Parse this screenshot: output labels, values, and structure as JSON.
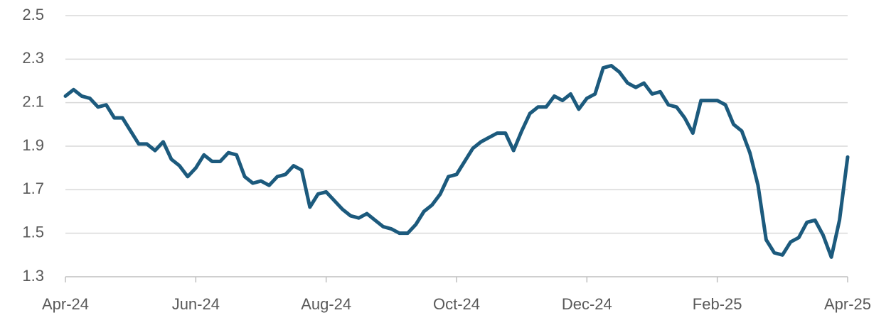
{
  "chart_data": {
    "type": "line",
    "categories": [
      "Apr-24",
      null,
      null,
      null,
      null,
      null,
      null,
      null,
      null,
      null,
      null,
      null,
      null,
      null,
      null,
      null,
      "Jun-24",
      null,
      null,
      null,
      null,
      null,
      null,
      null,
      null,
      null,
      null,
      null,
      null,
      null,
      null,
      null,
      "Aug-24",
      null,
      null,
      null,
      null,
      null,
      null,
      null,
      null,
      null,
      null,
      null,
      null,
      null,
      null,
      null,
      "Oct-24",
      null,
      null,
      null,
      null,
      null,
      null,
      null,
      null,
      null,
      null,
      null,
      null,
      null,
      null,
      null,
      "Dec-24",
      null,
      null,
      null,
      null,
      null,
      null,
      null,
      null,
      null,
      null,
      null,
      null,
      null,
      null,
      null,
      "Feb-25",
      null,
      null,
      null,
      null,
      null,
      null,
      null,
      null,
      null,
      null,
      null,
      null,
      null,
      null,
      null,
      "Apr-25"
    ],
    "values": [
      2.13,
      2.16,
      2.13,
      2.12,
      2.08,
      2.09,
      2.03,
      2.03,
      1.97,
      1.91,
      1.91,
      1.88,
      1.92,
      1.84,
      1.81,
      1.76,
      1.8,
      1.86,
      1.83,
      1.83,
      1.87,
      1.86,
      1.76,
      1.73,
      1.74,
      1.72,
      1.76,
      1.77,
      1.81,
      1.79,
      1.62,
      1.68,
      1.69,
      1.65,
      1.61,
      1.58,
      1.57,
      1.59,
      1.56,
      1.53,
      1.52,
      1.5,
      1.5,
      1.54,
      1.6,
      1.63,
      1.68,
      1.76,
      1.77,
      1.83,
      1.89,
      1.92,
      1.94,
      1.96,
      1.96,
      1.88,
      1.97,
      2.05,
      2.08,
      2.08,
      2.13,
      2.11,
      2.14,
      2.07,
      2.12,
      2.14,
      2.26,
      2.27,
      2.24,
      2.19,
      2.17,
      2.19,
      2.14,
      2.15,
      2.09,
      2.08,
      2.03,
      1.96,
      2.11,
      2.11,
      2.11,
      2.09,
      2.0,
      1.97,
      1.87,
      1.72,
      1.47,
      1.41,
      1.4,
      1.46,
      1.48,
      1.55,
      1.56,
      1.49,
      1.39,
      1.56,
      1.85
    ],
    "color": "#1c5a7d",
    "ylim": [
      1.3,
      2.5
    ],
    "yticks": [
      1.3,
      1.5,
      1.7,
      1.9,
      2.1,
      2.3,
      2.5
    ],
    "grid": true
  }
}
